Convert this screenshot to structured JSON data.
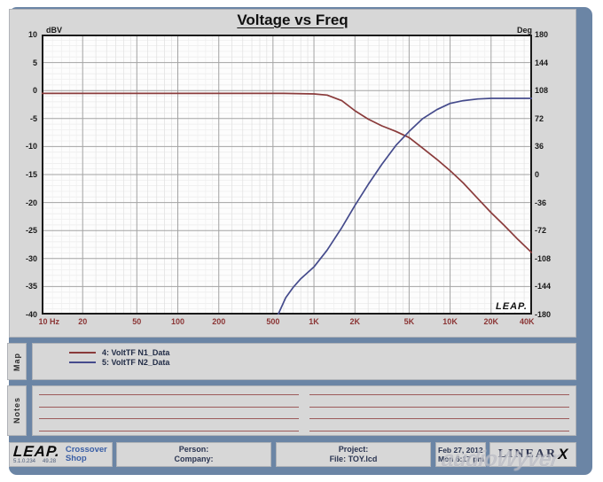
{
  "window": {
    "title": "Voltage vs Freq"
  },
  "colors": {
    "frame": "#6b85a5",
    "panel": "#d7d7d7",
    "grid-major": "#a3a3a3",
    "grid-minor": "#e2e2e2",
    "axis-text": "#1a1a1a",
    "x-label": "#8b3535",
    "legend-text": "#1f2a45",
    "notes-line": "#9c5a5a",
    "shop-blue": "#3a5fa6"
  },
  "chart_data": {
    "type": "line",
    "title": "Voltage vs Freq",
    "x": {
      "unit": "Hz",
      "scale": "log",
      "min": 10,
      "max": 40000,
      "ticks": [
        {
          "v": 10,
          "label": "10 Hz"
        },
        {
          "v": 20,
          "label": "20"
        },
        {
          "v": 50,
          "label": "50"
        },
        {
          "v": 100,
          "label": "100"
        },
        {
          "v": 200,
          "label": "200"
        },
        {
          "v": 500,
          "label": "500"
        },
        {
          "v": 1000,
          "label": "1K"
        },
        {
          "v": 2000,
          "label": "2K"
        },
        {
          "v": 5000,
          "label": "5K"
        },
        {
          "v": 10000,
          "label": "10K"
        },
        {
          "v": 20000,
          "label": "20K"
        },
        {
          "v": 40000,
          "label": "40K"
        }
      ],
      "minor_multipliers": [
        1.2,
        1.4,
        1.6,
        1.8,
        2.5,
        3,
        3.5,
        4,
        4.5,
        6,
        7,
        8,
        9
      ]
    },
    "y_left": {
      "label": "dBV",
      "min": -40,
      "max": 10,
      "major_step": 5,
      "minor_step": 1
    },
    "y_right": {
      "label": "Deg",
      "min": -180,
      "max": 180,
      "major_step": 36
    },
    "grid": true,
    "legend_position": "map-panel-below-chart",
    "series": [
      {
        "name": "4: VoltTF N1_Data",
        "color": "#8a3b3b",
        "y_axis": "left",
        "points": [
          [
            10,
            -0.5
          ],
          [
            100,
            -0.5
          ],
          [
            300,
            -0.5
          ],
          [
            600,
            -0.5
          ],
          [
            1000,
            -0.6
          ],
          [
            1250,
            -0.8
          ],
          [
            1600,
            -1.8
          ],
          [
            2000,
            -3.6
          ],
          [
            2500,
            -5.1
          ],
          [
            3150,
            -6.3
          ],
          [
            4000,
            -7.3
          ],
          [
            5000,
            -8.4
          ],
          [
            6300,
            -10.3
          ],
          [
            8000,
            -12.3
          ],
          [
            10000,
            -14.3
          ],
          [
            12500,
            -16.5
          ],
          [
            16000,
            -19.3
          ],
          [
            20000,
            -21.8
          ],
          [
            25000,
            -24.1
          ],
          [
            31500,
            -26.6
          ],
          [
            40000,
            -29.0
          ]
        ]
      },
      {
        "name": "5: VoltTF N2_Data",
        "color": "#454b8c",
        "y_axis": "left",
        "points": [
          [
            10,
            -40.2
          ],
          [
            540,
            -40.2
          ],
          [
            620,
            -37.0
          ],
          [
            700,
            -35.2
          ],
          [
            800,
            -33.6
          ],
          [
            1000,
            -31.5
          ],
          [
            1250,
            -28.5
          ],
          [
            1600,
            -24.5
          ],
          [
            2000,
            -20.5
          ],
          [
            2500,
            -16.8
          ],
          [
            3150,
            -13.2
          ],
          [
            4000,
            -9.8
          ],
          [
            5000,
            -7.3
          ],
          [
            6300,
            -5.0
          ],
          [
            8000,
            -3.4
          ],
          [
            10000,
            -2.3
          ],
          [
            12500,
            -1.8
          ],
          [
            16000,
            -1.5
          ],
          [
            20000,
            -1.4
          ],
          [
            40000,
            -1.4
          ]
        ]
      }
    ]
  },
  "map": {
    "label": "Map"
  },
  "notes": {
    "label": "Notes",
    "rows": 4,
    "cols": 2
  },
  "plot_logo": "LEAP.",
  "footer": {
    "leap_logo": "LEAP.",
    "leap_sub_left": "5.1.0.234",
    "leap_sub_right": "49.28",
    "shop_line1": "Crossover",
    "shop_line2": "Shop",
    "person_label": "Person:",
    "company_label": "Company:",
    "project_label": "Project:",
    "file_label": "File: TOY.lcd",
    "date": "Feb 27, 2012",
    "time": "Mon  6:17 pm",
    "brand": "LINEAR",
    "brand_x": "X"
  },
  "watermark": "audioWyver"
}
